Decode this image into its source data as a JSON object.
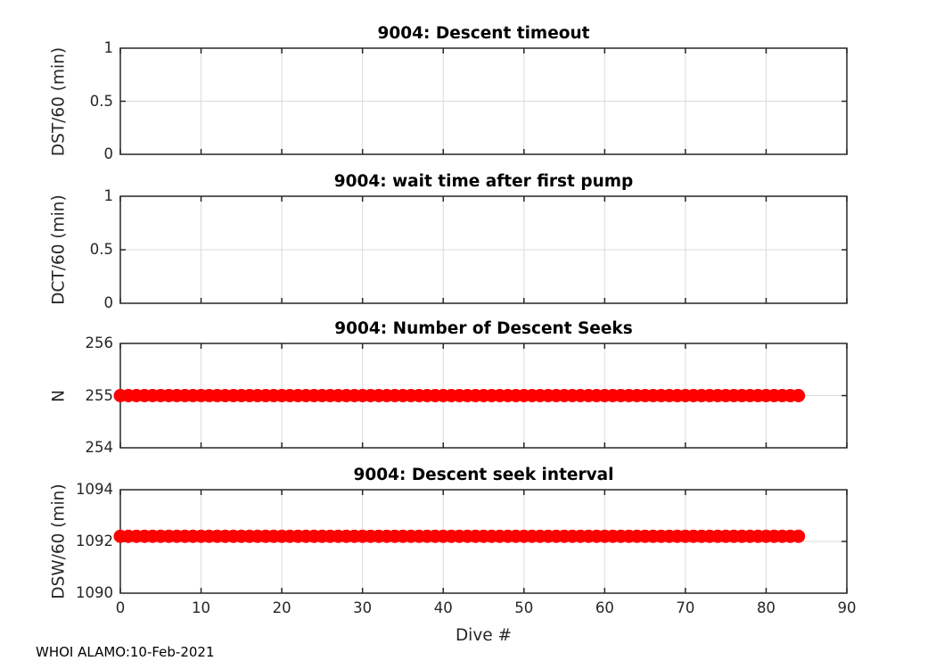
{
  "figure": {
    "footer_text": "WHOI ALAMO:10-Feb-2021",
    "background": "#ffffff"
  },
  "style": {
    "axis_color": "#262626",
    "grid_color": "#dbdbdb",
    "title_color": "#000000",
    "tick_label_color": "#262626",
    "marker_color": "#ff0000"
  },
  "chart_data": {
    "type": "scatter",
    "grid": true,
    "legend": "none",
    "xaxis": {
      "label": "Dive #",
      "min": 0,
      "max": 90,
      "ticks": [
        0,
        10,
        20,
        30,
        40,
        50,
        60,
        70,
        80,
        90
      ]
    },
    "charts": [
      {
        "title": "9004: Descent timeout",
        "ylabel": "DST/60 (min)",
        "ymin": 0,
        "ymax": 1,
        "yticks": [
          {
            "label": "1",
            "value": 1
          },
          {
            "label": "0.5",
            "value": 0.5
          },
          {
            "label": "0",
            "value": 0
          }
        ],
        "series": []
      },
      {
        "title": "9004: wait time after first pump",
        "ylabel": "DCT/60 (min)",
        "ymin": 0,
        "ymax": 1,
        "yticks": [
          {
            "label": "1",
            "value": 1
          },
          {
            "label": "0.5",
            "value": 0.5
          },
          {
            "label": "0",
            "value": 0
          }
        ],
        "series": []
      },
      {
        "title": "9004: Number of Descent Seeks",
        "ylabel": "N",
        "ymin": 254,
        "ymax": 256,
        "yticks": [
          {
            "label": "256",
            "value": 256
          },
          {
            "label": "255",
            "value": 255
          },
          {
            "label": "254",
            "value": 254
          }
        ],
        "series": [
          {
            "name": "number-of-descent-seeks",
            "marker": "filled-circle",
            "color": "#ff0000",
            "x_first": 0,
            "x_last": 84,
            "x_step": 1,
            "point_count": 85,
            "y_constant": 255
          }
        ]
      },
      {
        "title": "9004: Descent seek interval",
        "ylabel": "DSW/60 (min)",
        "ymin": 1090,
        "ymax": 1094,
        "yticks": [
          {
            "label": "1094",
            "value": 1094
          },
          {
            "label": "1092",
            "value": 1092
          },
          {
            "label": "1090",
            "value": 1090
          }
        ],
        "series": [
          {
            "name": "descent-seek-interval",
            "marker": "filled-circle",
            "color": "#ff0000",
            "x_first": 0,
            "x_last": 84,
            "x_step": 1,
            "point_count": 85,
            "y_constant": 1092.2
          }
        ]
      }
    ]
  }
}
